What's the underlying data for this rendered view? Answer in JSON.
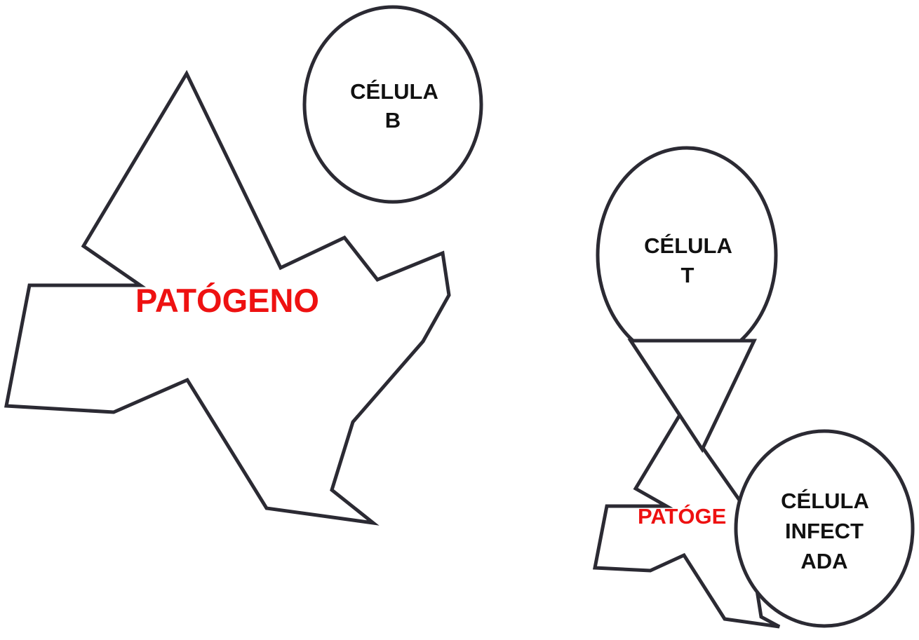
{
  "colors": {
    "outline": "#2b2a33",
    "pathogen_label": "#ee1111",
    "cell_label": "#111111",
    "background": "#ffffff"
  },
  "left_group": {
    "pathogen_label": "PATÓGENO",
    "b_cell": {
      "line1": "CÉLULA",
      "line2": "B"
    }
  },
  "right_group": {
    "t_cell": {
      "line1": "CÉLULA",
      "line2": "T"
    },
    "pathogen_label": "PATÓGE",
    "infected_cell": {
      "line1": "CÉLULA",
      "line2": "INFECT",
      "line3": "ADA"
    }
  }
}
